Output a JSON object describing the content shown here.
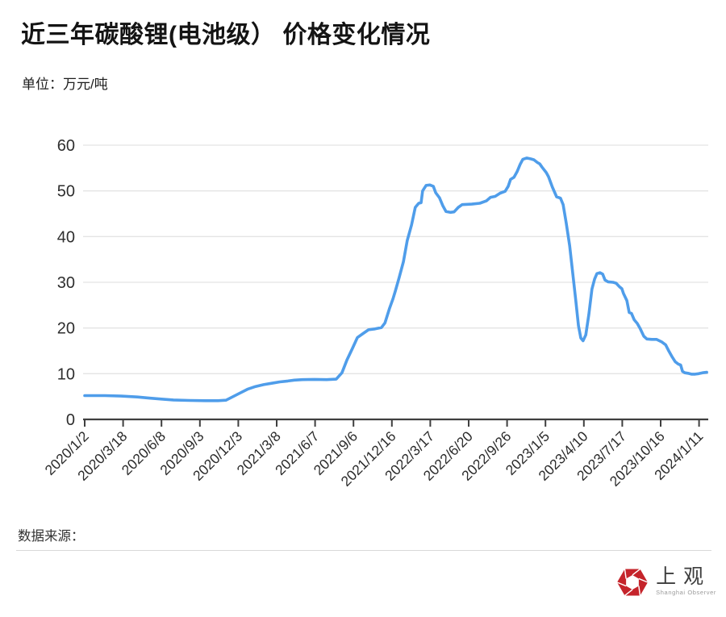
{
  "header": {
    "title": "近三年碳酸锂(电池级） 价格变化情况",
    "unit": "单位：万元/吨"
  },
  "footer": {
    "source_label": "数据来源："
  },
  "logo": {
    "name": "上观",
    "subname": "Shanghai Observer",
    "icon": "aperture-hexagon-icon",
    "color": "#c5242b"
  },
  "chart_data": {
    "type": "line",
    "title": "近三年碳酸锂(电池级） 价格变化情况",
    "ylabel": "万元/吨",
    "ylim": [
      0,
      60
    ],
    "yticks": [
      0,
      10,
      20,
      30,
      40,
      50,
      60
    ],
    "grid": "horizontal",
    "legend": "none",
    "line_color": "#4f9dea",
    "x_tick_labels": [
      "2020/1/2",
      "2020/3/18",
      "2020/6/8",
      "2020/9/3",
      "2020/12/3",
      "2021/3/8",
      "2021/6/7",
      "2021/9/6",
      "2021/12/16",
      "2022/3/17",
      "2022/6/20",
      "2022/9/26",
      "2023/1/5",
      "2023/4/10",
      "2023/7/17",
      "2023/10/16",
      "2024/1/11"
    ],
    "series": [
      {
        "name": "碳酸锂(电池级)价格",
        "color": "#4f9dea",
        "points": [
          [
            0.0,
            5.2
          ],
          [
            0.53,
            5.2
          ],
          [
            0.95,
            5.1
          ],
          [
            1.37,
            4.9
          ],
          [
            1.68,
            4.65
          ],
          [
            2.0,
            4.45
          ],
          [
            2.31,
            4.25
          ],
          [
            2.73,
            4.15
          ],
          [
            3.15,
            4.1
          ],
          [
            3.47,
            4.1
          ],
          [
            3.68,
            4.2
          ],
          [
            3.82,
            4.8
          ],
          [
            4.03,
            5.7
          ],
          [
            4.24,
            6.6
          ],
          [
            4.45,
            7.2
          ],
          [
            4.66,
            7.6
          ],
          [
            4.87,
            7.9
          ],
          [
            5.08,
            8.2
          ],
          [
            5.29,
            8.4
          ],
          [
            5.46,
            8.6
          ],
          [
            5.67,
            8.7
          ],
          [
            5.99,
            8.75
          ],
          [
            6.3,
            8.7
          ],
          [
            6.55,
            8.8
          ],
          [
            6.7,
            10.2
          ],
          [
            6.83,
            13.0
          ],
          [
            6.97,
            15.5
          ],
          [
            7.1,
            17.9
          ],
          [
            7.25,
            18.8
          ],
          [
            7.39,
            19.6
          ],
          [
            7.56,
            19.8
          ],
          [
            7.73,
            20.1
          ],
          [
            7.82,
            21.1
          ],
          [
            7.94,
            24.3
          ],
          [
            8.03,
            26.4
          ],
          [
            8.09,
            28.1
          ],
          [
            8.19,
            31.0
          ],
          [
            8.3,
            34.5
          ],
          [
            8.4,
            39.1
          ],
          [
            8.51,
            42.5
          ],
          [
            8.61,
            46.4
          ],
          [
            8.7,
            47.3
          ],
          [
            8.76,
            47.4
          ],
          [
            8.8,
            50.0
          ],
          [
            8.89,
            51.2
          ],
          [
            8.99,
            51.3
          ],
          [
            9.08,
            51.0
          ],
          [
            9.14,
            49.6
          ],
          [
            9.24,
            48.5
          ],
          [
            9.33,
            46.7
          ],
          [
            9.41,
            45.5
          ],
          [
            9.52,
            45.3
          ],
          [
            9.62,
            45.4
          ],
          [
            9.73,
            46.4
          ],
          [
            9.83,
            47.0
          ],
          [
            10.08,
            47.1
          ],
          [
            10.29,
            47.3
          ],
          [
            10.46,
            47.8
          ],
          [
            10.57,
            48.6
          ],
          [
            10.69,
            48.8
          ],
          [
            10.82,
            49.5
          ],
          [
            10.95,
            49.9
          ],
          [
            11.03,
            51.0
          ],
          [
            11.09,
            52.5
          ],
          [
            11.18,
            53.0
          ],
          [
            11.26,
            54.2
          ],
          [
            11.34,
            55.8
          ],
          [
            11.41,
            56.9
          ],
          [
            11.51,
            57.2
          ],
          [
            11.62,
            57.0
          ],
          [
            11.7,
            56.8
          ],
          [
            11.79,
            56.2
          ],
          [
            11.85,
            55.9
          ],
          [
            11.91,
            55.2
          ],
          [
            12.02,
            54.0
          ],
          [
            12.08,
            53.1
          ],
          [
            12.18,
            50.8
          ],
          [
            12.29,
            48.7
          ],
          [
            12.39,
            48.4
          ],
          [
            12.46,
            47.0
          ],
          [
            12.54,
            43.0
          ],
          [
            12.63,
            38.0
          ],
          [
            12.71,
            32.0
          ],
          [
            12.79,
            26.0
          ],
          [
            12.86,
            20.5
          ],
          [
            12.92,
            17.8
          ],
          [
            12.98,
            17.2
          ],
          [
            13.05,
            18.5
          ],
          [
            13.13,
            23.0
          ],
          [
            13.21,
            28.5
          ],
          [
            13.28,
            30.7
          ],
          [
            13.34,
            31.9
          ],
          [
            13.42,
            32.1
          ],
          [
            13.49,
            31.8
          ],
          [
            13.55,
            30.5
          ],
          [
            13.63,
            30.1
          ],
          [
            13.76,
            30.0
          ],
          [
            13.84,
            29.8
          ],
          [
            13.93,
            29.0
          ],
          [
            13.99,
            28.6
          ],
          [
            14.03,
            27.6
          ],
          [
            14.12,
            26.0
          ],
          [
            14.18,
            23.4
          ],
          [
            14.24,
            23.2
          ],
          [
            14.31,
            21.8
          ],
          [
            14.39,
            21.0
          ],
          [
            14.47,
            19.8
          ],
          [
            14.56,
            18.2
          ],
          [
            14.64,
            17.6
          ],
          [
            14.77,
            17.5
          ],
          [
            14.89,
            17.5
          ],
          [
            15.02,
            17.0
          ],
          [
            15.13,
            16.3
          ],
          [
            15.21,
            15.0
          ],
          [
            15.29,
            13.8
          ],
          [
            15.38,
            12.6
          ],
          [
            15.46,
            12.1
          ],
          [
            15.52,
            11.9
          ],
          [
            15.57,
            10.5
          ],
          [
            15.63,
            10.2
          ],
          [
            15.71,
            10.1
          ],
          [
            15.8,
            9.9
          ],
          [
            15.9,
            9.9
          ],
          [
            15.99,
            10.0
          ],
          [
            16.09,
            10.2
          ],
          [
            16.2,
            10.3
          ]
        ]
      }
    ]
  }
}
